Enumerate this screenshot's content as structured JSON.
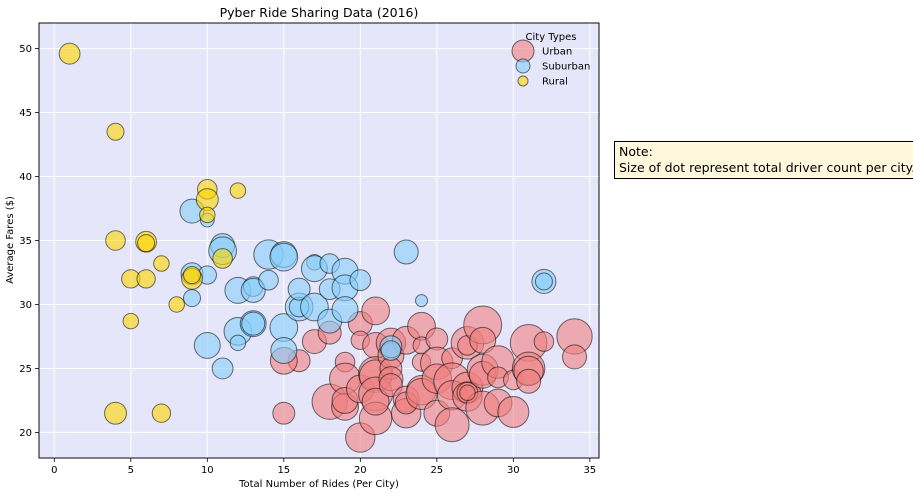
{
  "note": {
    "line1": "Note:",
    "line2": "Size of dot represent total driver count per city."
  },
  "chart_data": {
    "type": "scatter",
    "title": "Pyber Ride Sharing Data (2016)",
    "xlabel": "Total Number of Rides (Per City)",
    "ylabel": "Average Fares ($)",
    "xlim": [
      -1,
      35.6
    ],
    "ylim": [
      18,
      52
    ],
    "xticks": [
      0,
      5,
      10,
      15,
      20,
      25,
      30,
      35
    ],
    "yticks": [
      20,
      25,
      30,
      35,
      40,
      45,
      50
    ],
    "grid": true,
    "background": "#e6e6fa",
    "legend": {
      "title": "City Types",
      "placement": "top-right"
    },
    "marker_size_meaning": "driver count",
    "series": [
      {
        "name": "Urban",
        "color": "#f08080",
        "points": [
          [
            16,
            25.6,
            10
          ],
          [
            17,
            27.1,
            12
          ],
          [
            18,
            27.8,
            11
          ],
          [
            19,
            25.5,
            8
          ],
          [
            18,
            22.4,
            26
          ],
          [
            19,
            22.0,
            15
          ],
          [
            19,
            24.2,
            20
          ],
          [
            19,
            22.5,
            14
          ],
          [
            20,
            19.6,
            18
          ],
          [
            20,
            23.4,
            16
          ],
          [
            20,
            28.5,
            12
          ],
          [
            20,
            27.2,
            7
          ],
          [
            21,
            29.5,
            16
          ],
          [
            21,
            26.8,
            14
          ],
          [
            21,
            24.6,
            24
          ],
          [
            21,
            24.4,
            22
          ],
          [
            21,
            23.0,
            24
          ],
          [
            21,
            21.1,
            22
          ],
          [
            21,
            22.4,
            15
          ],
          [
            22,
            27.0,
            18
          ],
          [
            22,
            26.0,
            14
          ],
          [
            22,
            25.0,
            10
          ],
          [
            22,
            24.2,
            12
          ],
          [
            22,
            23.7,
            11
          ],
          [
            23,
            27.2,
            16
          ],
          [
            23,
            22.6,
            14
          ],
          [
            23,
            21.5,
            18
          ],
          [
            23,
            22.3,
            10
          ],
          [
            24,
            28.3,
            16
          ],
          [
            24,
            25.5,
            7
          ],
          [
            24,
            23.3,
            18
          ],
          [
            24,
            23.0,
            20
          ],
          [
            24,
            26.8,
            6
          ],
          [
            25,
            27.3,
            10
          ],
          [
            25,
            25.4,
            22
          ],
          [
            25,
            24.2,
            18
          ],
          [
            25,
            21.5,
            14
          ],
          [
            26,
            25.8,
            9
          ],
          [
            26,
            24.0,
            28
          ],
          [
            26,
            22.9,
            18
          ],
          [
            26,
            20.6,
            24
          ],
          [
            27,
            27.0,
            22
          ],
          [
            27,
            26.8,
            8
          ],
          [
            27,
            23.5,
            20
          ],
          [
            27,
            22.8,
            18
          ],
          [
            27,
            23.1,
            9
          ],
          [
            28,
            28.4,
            30
          ],
          [
            28,
            27.2,
            14
          ],
          [
            28,
            24.9,
            20
          ],
          [
            28,
            24.5,
            15
          ],
          [
            28,
            21.9,
            24
          ],
          [
            29,
            25.5,
            22
          ],
          [
            29,
            24.3,
            9
          ],
          [
            29,
            22.3,
            16
          ],
          [
            30,
            24.1,
            8
          ],
          [
            30,
            21.6,
            20
          ],
          [
            31,
            27.0,
            28
          ],
          [
            31,
            25.0,
            22
          ],
          [
            31,
            24.8,
            18
          ],
          [
            31,
            24.0,
            12
          ],
          [
            32,
            27.1,
            8
          ],
          [
            34,
            27.5,
            26
          ],
          [
            34,
            25.9,
            12
          ],
          [
            15,
            21.5,
            10
          ],
          [
            15,
            25.6,
            15
          ],
          [
            27,
            23.1,
            5
          ]
        ]
      },
      {
        "name": "Suburban",
        "color": "#87cefa",
        "points": [
          [
            9,
            37.3,
            12
          ],
          [
            9,
            32.4,
            10
          ],
          [
            9,
            30.5,
            6
          ],
          [
            10,
            36.6,
            4
          ],
          [
            10,
            32.3,
            7
          ],
          [
            10,
            26.8,
            14
          ],
          [
            11,
            34.6,
            12
          ],
          [
            11,
            34.2,
            16
          ],
          [
            11,
            25.0,
            9
          ],
          [
            12,
            31.1,
            14
          ],
          [
            12,
            27.9,
            16
          ],
          [
            12,
            27.0,
            5
          ],
          [
            13,
            31.4,
            8
          ],
          [
            13,
            31.1,
            12
          ],
          [
            13,
            28.5,
            14
          ],
          [
            13,
            28.5,
            11
          ],
          [
            14,
            33.9,
            18
          ],
          [
            14,
            31.9,
            8
          ],
          [
            15,
            33.9,
            14
          ],
          [
            15,
            33.7,
            16
          ],
          [
            15,
            28.2,
            16
          ],
          [
            15,
            26.4,
            14
          ],
          [
            16,
            29.8,
            16
          ],
          [
            16,
            29.8,
            8
          ],
          [
            16,
            31.2,
            10
          ],
          [
            17,
            33.3,
            5
          ],
          [
            17,
            32.8,
            14
          ],
          [
            17,
            29.8,
            16
          ],
          [
            18,
            33.2,
            8
          ],
          [
            18,
            31.2,
            9
          ],
          [
            18,
            28.7,
            12
          ],
          [
            19,
            32.6,
            14
          ],
          [
            19,
            31.3,
            14
          ],
          [
            19,
            29.6,
            14
          ],
          [
            20,
            31.9,
            9
          ],
          [
            22,
            26.7,
            10
          ],
          [
            22,
            26.4,
            8
          ],
          [
            23,
            34.1,
            12
          ],
          [
            24,
            30.3,
            3
          ],
          [
            32,
            31.8,
            12
          ],
          [
            32,
            31.8,
            6
          ]
        ]
      },
      {
        "name": "Rural",
        "color": "#ffd700",
        "points": [
          [
            1,
            49.6,
            9
          ],
          [
            4,
            43.5,
            6
          ],
          [
            4,
            35.0,
            8
          ],
          [
            4,
            21.5,
            10
          ],
          [
            5,
            32.0,
            7
          ],
          [
            5,
            28.7,
            5
          ],
          [
            6,
            34.9,
            9
          ],
          [
            6,
            34.8,
            6
          ],
          [
            6,
            32.0,
            7
          ],
          [
            7,
            33.2,
            5
          ],
          [
            7,
            21.5,
            7
          ],
          [
            8,
            30.0,
            5
          ],
          [
            9,
            32.0,
            9
          ],
          [
            9,
            32.3,
            6
          ],
          [
            10,
            39.0,
            8
          ],
          [
            10,
            38.2,
            10
          ],
          [
            10,
            37.0,
            5
          ],
          [
            11,
            33.6,
            8
          ],
          [
            12,
            38.9,
            5
          ]
        ]
      }
    ]
  }
}
